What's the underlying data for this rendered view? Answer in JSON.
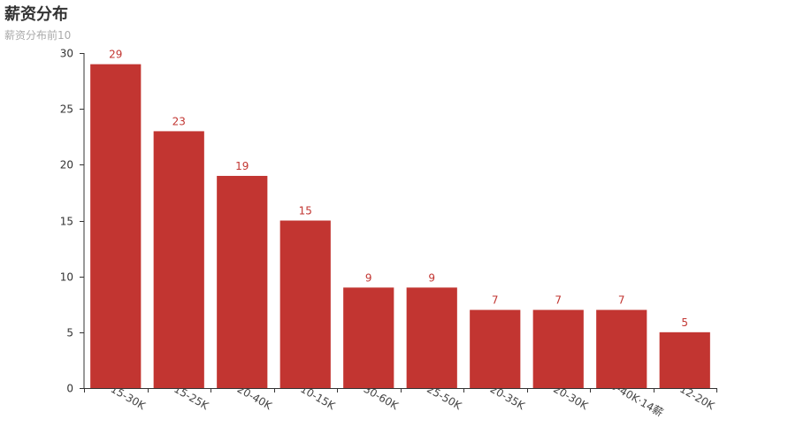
{
  "chart_data": {
    "type": "bar",
    "title": "薪资分布",
    "subtitle": "薪资分布前10",
    "categories": [
      "15-30K",
      "15-25K",
      "20-40K",
      "10-15K",
      "30-60K",
      "25-50K",
      "20-35K",
      "20-30K",
      "20-40K·14薪",
      "12-20K"
    ],
    "values": [
      29,
      23,
      19,
      15,
      9,
      9,
      7,
      7,
      7,
      5
    ],
    "ylim": [
      0,
      30
    ],
    "yticks": [
      0,
      5,
      10,
      15,
      20,
      25,
      30
    ],
    "grid": false,
    "data_labels": true,
    "colors": {
      "bar": "#c23531",
      "label": "#c23531",
      "axis": "#333333",
      "tick_text": "#333333",
      "category_text": "#444444"
    }
  }
}
